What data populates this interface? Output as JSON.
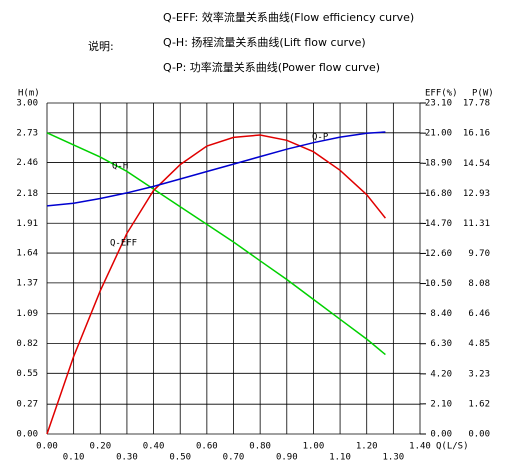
{
  "chart_data": {
    "type": "line",
    "note_title": "说明:",
    "notes": [
      "Q-EFF: 效率流量关系曲线(Flow efficiency curve)",
      "Q-H: 扬程流量关系曲线(Lift flow curve)",
      "Q-P: 功率流量关系曲线(Power flow curve)"
    ],
    "x_label": "Q(L/S)",
    "y_label": "H(m)",
    "y2_label": "EFF(%)",
    "y3_label": "P(W)",
    "x": [
      0,
      0.1,
      0.2,
      0.3,
      0.4,
      0.5,
      0.6,
      0.7,
      0.8,
      0.9,
      1.0,
      1.1,
      1.2,
      1.27
    ],
    "series": [
      {
        "name": "Q-H",
        "color": "#00d000",
        "axis": "y",
        "values": [
          2.73,
          2.62,
          2.51,
          2.38,
          2.22,
          2.06,
          1.9,
          1.74,
          1.57,
          1.4,
          1.22,
          1.04,
          0.86,
          0.72
        ]
      },
      {
        "name": "Q-EFF",
        "color": "#e00000",
        "axis": "y2",
        "values": [
          0,
          5.4,
          10.0,
          14.0,
          17.0,
          18.8,
          20.1,
          20.7,
          20.87,
          20.5,
          19.7,
          18.4,
          16.7,
          15.07
        ]
      },
      {
        "name": "Q-P",
        "color": "#0000d0",
        "axis": "y3",
        "values": [
          12.25,
          12.4,
          12.65,
          12.95,
          13.3,
          13.7,
          14.1,
          14.5,
          14.9,
          15.3,
          15.65,
          15.95,
          16.15,
          16.22
        ]
      }
    ],
    "xlim": [
      0,
      1.4
    ],
    "xticks": [
      {
        "value": 0,
        "label": "0.00"
      },
      {
        "value": 0.1,
        "label": "0.10"
      },
      {
        "value": 0.2,
        "label": "0.20"
      },
      {
        "value": 0.3,
        "label": "0.30"
      },
      {
        "value": 0.4,
        "label": "0.40"
      },
      {
        "value": 0.5,
        "label": "0.50"
      },
      {
        "value": 0.6,
        "label": "0.60"
      },
      {
        "value": 0.7,
        "label": "0.70"
      },
      {
        "value": 0.8,
        "label": "0.80"
      },
      {
        "value": 0.9,
        "label": "0.90"
      },
      {
        "value": 1.0,
        "label": "1.00"
      },
      {
        "value": 1.1,
        "label": "1.10"
      },
      {
        "value": 1.2,
        "label": "1.20"
      },
      {
        "value": 1.3,
        "label": "1.30"
      },
      {
        "value": 1.4,
        "label": "1.40"
      }
    ],
    "ylim": [
      0,
      3
    ],
    "yticks": [
      {
        "value": 0,
        "label": "0.00"
      },
      0.27,
      0.55,
      0.82,
      1.09,
      1.37,
      1.64,
      1.91,
      2.18,
      2.46,
      2.73,
      {
        "value": 3,
        "label": "3.00"
      }
    ],
    "y2lim": [
      0,
      23.1
    ],
    "y2ticks": [
      {
        "value": 0,
        "label": "0.00"
      },
      {
        "value": 2.1,
        "label": "2.10"
      },
      {
        "value": 4.2,
        "label": "4.20"
      },
      {
        "value": 6.3,
        "label": "6.30"
      },
      {
        "value": 8.4,
        "label": "8.40"
      },
      {
        "value": 10.5,
        "label": "10.50"
      },
      {
        "value": 12.6,
        "label": "12.60"
      },
      {
        "value": 14.7,
        "label": "14.70"
      },
      {
        "value": 16.8,
        "label": "16.80"
      },
      {
        "value": 18.9,
        "label": "18.90"
      },
      {
        "value": 21,
        "label": "21.00"
      },
      {
        "value": 23.1,
        "label": "23.10"
      }
    ],
    "y3lim": [
      0,
      17.78
    ],
    "y3ticks": [
      {
        "value": 0,
        "label": "0.00"
      },
      1.62,
      3.23,
      4.85,
      6.46,
      8.08,
      {
        "value": 9.7,
        "label": "9.70"
      },
      11.31,
      12.93,
      14.54,
      16.16,
      17.78
    ],
    "grid": true
  }
}
